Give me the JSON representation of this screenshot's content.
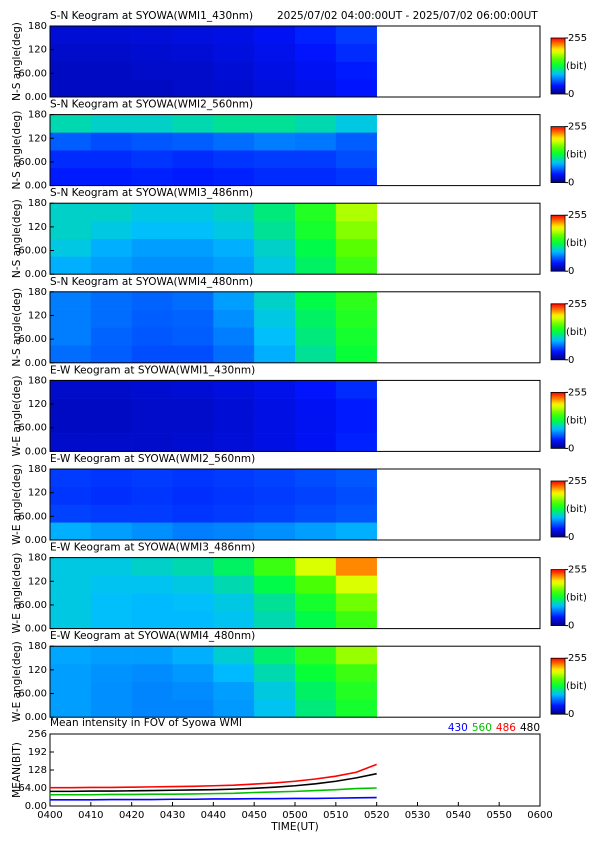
{
  "chart_data": [
    {
      "type": "heatmap",
      "title": "S-N Keogram at SYOWA(WMI1_430nm)",
      "subtitle": "2025/07/02 04:00:00UT - 2025/07/02 06:00:00UT",
      "ylabel": "N-S angle(deg)",
      "xlim": [
        0,
        120
      ],
      "xbins": [
        0,
        10,
        20,
        30,
        40,
        50,
        60,
        70,
        80
      ],
      "ylim": [
        0,
        180
      ],
      "ybins": [
        0,
        45,
        90,
        135,
        180
      ],
      "yticks": [
        {
          "value": 0,
          "label": "0.00"
        },
        {
          "value": 60,
          "label": "60.00"
        },
        120,
        180
      ],
      "z": [
        [
          20,
          20,
          20,
          22,
          24,
          28,
          32,
          38
        ],
        [
          20,
          20,
          22,
          22,
          25,
          30,
          35,
          40
        ],
        [
          22,
          22,
          24,
          25,
          28,
          32,
          38,
          45
        ],
        [
          25,
          25,
          26,
          28,
          30,
          35,
          42,
          50
        ]
      ],
      "clim": [
        0,
        255
      ],
      "colorbar_ticks": [
        0,
        255
      ],
      "colorbar_label": "(bit)"
    },
    {
      "type": "heatmap",
      "title": "S-N Keogram at SYOWA(WMI2_560nm)",
      "ylabel": "N-S angle(deg)",
      "xlim": [
        0,
        120
      ],
      "xbins": [
        0,
        10,
        20,
        30,
        40,
        50,
        60,
        70,
        80
      ],
      "ylim": [
        0,
        180
      ],
      "ybins": [
        0,
        45,
        90,
        135,
        180
      ],
      "yticks": [
        {
          "value": 0,
          "label": "0.00"
        },
        {
          "value": 60,
          "label": "60.00"
        },
        120,
        180
      ],
      "z": [
        [
          40,
          40,
          42,
          40,
          42,
          45,
          45,
          48
        ],
        [
          45,
          45,
          48,
          45,
          48,
          50,
          50,
          55
        ],
        [
          60,
          55,
          58,
          60,
          65,
          70,
          68,
          60
        ],
        [
          105,
          100,
          100,
          105,
          110,
          110,
          105,
          95
        ]
      ],
      "clim": [
        0,
        255
      ],
      "colorbar_ticks": [
        0,
        255
      ],
      "colorbar_label": "(bit)"
    },
    {
      "type": "heatmap",
      "title": "S-N Keogram at SYOWA(WMI3_486nm)",
      "ylabel": "N-S angle(deg)",
      "xlim": [
        0,
        120
      ],
      "xbins": [
        0,
        10,
        20,
        30,
        40,
        50,
        60,
        70,
        80
      ],
      "ylim": [
        0,
        180
      ],
      "ybins": [
        0,
        45,
        90,
        135,
        180
      ],
      "yticks": [
        {
          "value": 0,
          "label": "0.00"
        },
        {
          "value": 60,
          "label": "60.00"
        },
        120,
        180
      ],
      "z": [
        [
          85,
          80,
          75,
          75,
          80,
          95,
          120,
          150
        ],
        [
          95,
          85,
          80,
          80,
          85,
          100,
          125,
          160
        ],
        [
          100,
          95,
          90,
          90,
          95,
          110,
          135,
          170
        ],
        [
          100,
          100,
          95,
          95,
          100,
          115,
          140,
          180
        ]
      ],
      "clim": [
        0,
        255
      ],
      "colorbar_ticks": [
        0,
        255
      ],
      "colorbar_label": "(bit)"
    },
    {
      "type": "heatmap",
      "title": "S-N Keogram at SYOWA(WMI4_480nm)",
      "ylabel": "N-S angle(deg)",
      "xlim": [
        0,
        120
      ],
      "xbins": [
        0,
        10,
        20,
        30,
        40,
        50,
        60,
        70,
        80
      ],
      "ylim": [
        0,
        180
      ],
      "ybins": [
        0,
        45,
        90,
        135,
        180
      ],
      "yticks": [
        {
          "value": 0,
          "label": "0.00"
        },
        {
          "value": 60,
          "label": "60.00"
        },
        120,
        180
      ],
      "z": [
        [
          65,
          60,
          55,
          55,
          65,
          85,
          110,
          130
        ],
        [
          70,
          62,
          58,
          60,
          70,
          90,
          115,
          135
        ],
        [
          70,
          65,
          60,
          62,
          75,
          95,
          120,
          140
        ],
        [
          70,
          65,
          62,
          65,
          80,
          100,
          125,
          145
        ]
      ],
      "clim": [
        0,
        255
      ],
      "colorbar_ticks": [
        0,
        255
      ],
      "colorbar_label": "(bit)"
    },
    {
      "type": "heatmap",
      "title": "E-W Keogram at SYOWA(WMI1_430nm)",
      "ylabel": "W-E angle(deg)",
      "xlim": [
        0,
        120
      ],
      "xbins": [
        0,
        10,
        20,
        30,
        40,
        50,
        60,
        70,
        80
      ],
      "ylim": [
        0,
        180
      ],
      "ybins": [
        0,
        45,
        90,
        135,
        180
      ],
      "yticks": [
        {
          "value": 0,
          "label": "0.00"
        },
        {
          "value": 60,
          "label": "60.00"
        },
        120,
        180
      ],
      "z": [
        [
          22,
          22,
          22,
          24,
          26,
          30,
          35,
          42
        ],
        [
          20,
          20,
          22,
          22,
          25,
          30,
          34,
          40
        ],
        [
          20,
          20,
          22,
          22,
          25,
          30,
          35,
          40
        ],
        [
          22,
          22,
          24,
          25,
          28,
          32,
          38,
          45
        ]
      ],
      "clim": [
        0,
        255
      ],
      "colorbar_ticks": [
        0,
        255
      ],
      "colorbar_label": "(bit)"
    },
    {
      "type": "heatmap",
      "title": "E-W Keogram at SYOWA(WMI2_560nm)",
      "ylabel": "W-E angle(deg)",
      "xlim": [
        0,
        120
      ],
      "xbins": [
        0,
        10,
        20,
        30,
        40,
        50,
        60,
        70,
        80
      ],
      "ylim": [
        0,
        180
      ],
      "ybins": [
        0,
        45,
        90,
        135,
        180
      ],
      "yticks": [
        {
          "value": 0,
          "label": "0.00"
        },
        {
          "value": 60,
          "label": "60.00"
        },
        120,
        180
      ],
      "z": [
        [
          85,
          80,
          75,
          70,
          72,
          75,
          80,
          85
        ],
        [
          52,
          50,
          50,
          48,
          50,
          52,
          55,
          58
        ],
        [
          48,
          46,
          48,
          46,
          48,
          50,
          52,
          55
        ],
        [
          50,
          48,
          50,
          48,
          50,
          52,
          55,
          58
        ]
      ],
      "clim": [
        0,
        255
      ],
      "colorbar_ticks": [
        0,
        255
      ],
      "colorbar_label": "(bit)"
    },
    {
      "type": "heatmap",
      "title": "E-W Keogram at SYOWA(WMI3_486nm)",
      "ylabel": "W-E angle(deg)",
      "xlim": [
        0,
        120
      ],
      "xbins": [
        0,
        10,
        20,
        30,
        40,
        50,
        60,
        70,
        80
      ],
      "ylim": [
        0,
        180
      ],
      "ybins": [
        0,
        45,
        90,
        135,
        180
      ],
      "yticks": [
        {
          "value": 0,
          "label": "0.00"
        },
        {
          "value": 60,
          "label": "60.00"
        },
        120,
        180
      ],
      "z": [
        [
          95,
          90,
          88,
          88,
          92,
          105,
          125,
          150
        ],
        [
          95,
          90,
          88,
          90,
          95,
          110,
          135,
          165
        ],
        [
          95,
          92,
          92,
          95,
          105,
          125,
          155,
          190
        ],
        [
          95,
          95,
          100,
          105,
          120,
          150,
          190,
          225
        ]
      ],
      "clim": [
        0,
        255
      ],
      "colorbar_ticks": [
        0,
        255
      ],
      "colorbar_label": "(bit)"
    },
    {
      "type": "heatmap",
      "title": "E-W Keogram at SYOWA(WMI4_480nm)",
      "ylabel": "W-E angle(deg)",
      "xlim": [
        0,
        120
      ],
      "xbins": [
        0,
        10,
        20,
        30,
        40,
        50,
        60,
        70,
        80
      ],
      "ylim": [
        0,
        180
      ],
      "ybins": [
        0,
        45,
        90,
        135,
        180
      ],
      "yticks": [
        {
          "value": 0,
          "label": "0.00"
        },
        {
          "value": 60,
          "label": "60.00"
        },
        120,
        180
      ],
      "z": [
        [
          80,
          75,
          72,
          72,
          78,
          92,
          115,
          135
        ],
        [
          80,
          75,
          72,
          74,
          80,
          96,
          120,
          140
        ],
        [
          80,
          76,
          74,
          78,
          88,
          105,
          130,
          150
        ],
        [
          82,
          80,
          80,
          85,
          98,
          118,
          145,
          175
        ]
      ],
      "clim": [
        0,
        255
      ],
      "colorbar_ticks": [
        0,
        255
      ],
      "colorbar_label": "(bit)"
    },
    {
      "type": "line",
      "title": "Mean intensity in FOV of Syowa WMI",
      "xlabel": "TIME(UT)",
      "ylabel": "MEAN(BIT)",
      "xlim": [
        0,
        120
      ],
      "ylim": [
        0,
        256
      ],
      "xticks": [
        {
          "value": 0,
          "label": "0400"
        },
        {
          "value": 10,
          "label": "0410"
        },
        {
          "value": 20,
          "label": "0420"
        },
        {
          "value": 30,
          "label": "0430"
        },
        {
          "value": 40,
          "label": "0440"
        },
        {
          "value": 50,
          "label": "0450"
        },
        {
          "value": 60,
          "label": "0500"
        },
        {
          "value": 70,
          "label": "0510"
        },
        {
          "value": 80,
          "label": "0520"
        },
        {
          "value": 90,
          "label": "0530"
        },
        {
          "value": 100,
          "label": "0540"
        },
        {
          "value": 110,
          "label": "0550"
        },
        {
          "value": 120,
          "label": "0600"
        }
      ],
      "yticks": [
        {
          "value": 0,
          "label": "0.00"
        },
        {
          "value": 64,
          "label": "64.00"
        },
        128,
        192,
        256
      ],
      "x": [
        0,
        5,
        10,
        15,
        20,
        25,
        30,
        35,
        40,
        45,
        50,
        55,
        60,
        65,
        70,
        75,
        80
      ],
      "series": [
        {
          "name": "430",
          "color": "#0000ff",
          "values": [
            22,
            22,
            22,
            23,
            23,
            23,
            24,
            24,
            25,
            25,
            26,
            26,
            27,
            27,
            28,
            29,
            30
          ]
        },
        {
          "name": "560",
          "color": "#00c000",
          "values": [
            40,
            40,
            40,
            41,
            41,
            42,
            42,
            43,
            44,
            45,
            48,
            50,
            52,
            55,
            58,
            62,
            64
          ]
        },
        {
          "name": "486",
          "color": "#ff0000",
          "values": [
            65,
            65,
            66,
            66,
            67,
            68,
            69,
            70,
            72,
            74,
            78,
            82,
            88,
            96,
            106,
            120,
            148
          ]
        },
        {
          "name": "480",
          "color": "#000000",
          "values": [
            52,
            52,
            53,
            53,
            54,
            55,
            56,
            57,
            58,
            60,
            63,
            67,
            72,
            79,
            88,
            100,
            115
          ]
        }
      ]
    }
  ]
}
